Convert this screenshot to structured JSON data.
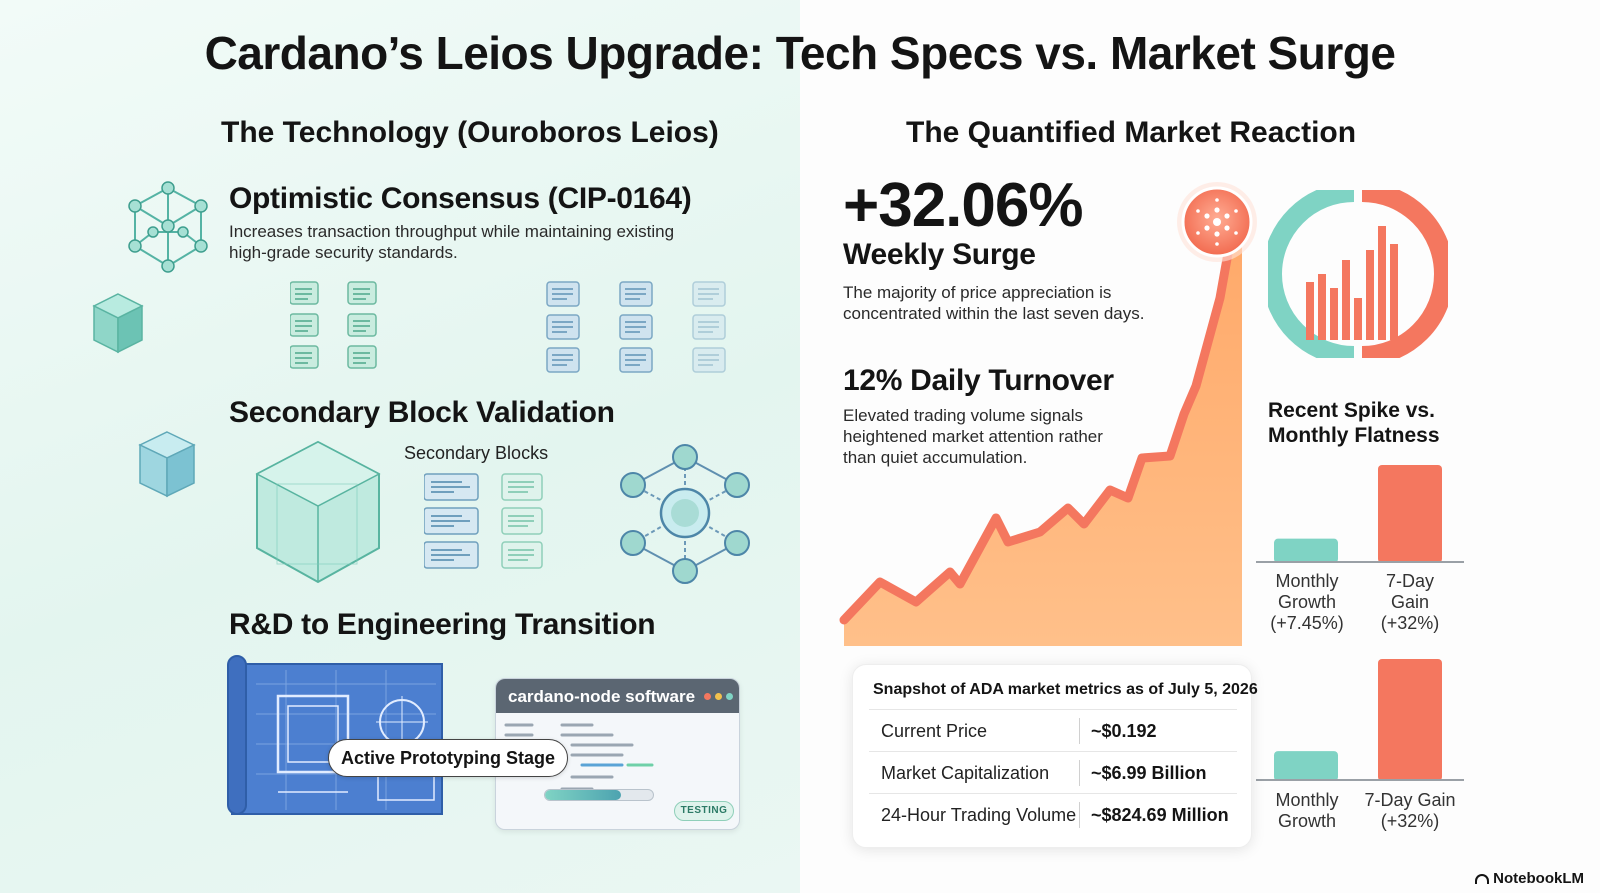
{
  "title": "Cardano’s Leios Upgrade: Tech Specs vs. Market Surge",
  "left": {
    "heading": "The Technology (Ouroboros Leios)",
    "consensus": {
      "title": "Optimistic Consensus (CIP-0164)",
      "body": "Increases transaction throughput while maintaining existing high-grade security standards."
    },
    "validation": {
      "title": "Secondary Block Validation",
      "label": "Secondary Blocks"
    },
    "transition": {
      "title": "R&D to Engineering Transition",
      "stage": "Active Prototyping Stage",
      "software": "cardano-node software",
      "badge": "TESTING",
      "progress": 0.7
    }
  },
  "right": {
    "heading": "The Quantified Market Reaction",
    "surge": {
      "value": "+32.06%",
      "label": "Weekly Surge",
      "body": "The majority of price appreciation is concentrated within the last seven days."
    },
    "turnover": {
      "title": "12% Daily Turnover",
      "body": "Elevated trading volume signals heightened market attention rather than quiet accumulation."
    },
    "spike_title": "Recent Spike vs. Monthly Flatness",
    "snapshot": {
      "title": "Snapshot of ADA market metrics as of July 5, 2026",
      "rows": [
        {
          "label": "Current Price",
          "value": "~$0.192"
        },
        {
          "label": "Market Capitalization",
          "value": "~$6.99 Billion"
        },
        {
          "label": "24-Hour Trading Volume",
          "value": "~$824.69 Million"
        }
      ]
    }
  },
  "chart_data": [
    {
      "type": "bar",
      "categories": [
        "Monthly Growth (+7.45%)",
        "7-Day Gain (+32%)"
      ],
      "values": [
        7.45,
        32
      ],
      "colors": [
        "#7fd3c4",
        "#f4775f"
      ]
    },
    {
      "type": "bar",
      "categories": [
        "Monthly Growth",
        "7-Day Gain (+32%)"
      ],
      "values": [
        7.45,
        32
      ],
      "colors": [
        "#7fd3c4",
        "#f4775f"
      ]
    }
  ],
  "colors": {
    "accent": "#f4775f",
    "teal": "#7fd3c4",
    "area": "#ffb27a",
    "blueprint": "#4c7fd0"
  },
  "footer": "NotebookLM"
}
